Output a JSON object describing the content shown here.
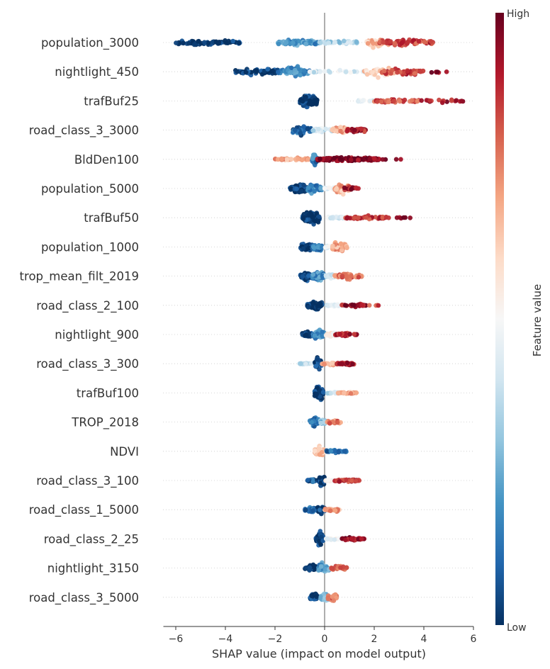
{
  "chart_data": {
    "type": "scatter",
    "subtype": "shap-beeswarm-summary",
    "xlabel": "SHAP value (impact on model output)",
    "xlim": [
      -6.5,
      6
    ],
    "xticks": [
      -6,
      -4,
      -2,
      0,
      2,
      4,
      6
    ],
    "xtick_labels": [
      "−6",
      "−4",
      "−2",
      "0",
      "2",
      "4",
      "6"
    ],
    "grid": false,
    "zero_line": true,
    "colorbar": {
      "title": "Feature value",
      "high_label": "High",
      "low_label": "Low",
      "colormap": "RdBu_r",
      "stops": [
        "#053061",
        "#2166ac",
        "#4393c3",
        "#92c5de",
        "#d1e5f0",
        "#f7f7f7",
        "#fddbc7",
        "#f4a582",
        "#d6604d",
        "#b2182b",
        "#67001f"
      ]
    },
    "features": [
      {
        "name": "population_3000",
        "clusters": [
          [
            -6.0,
            -3.4,
            0.02,
            70,
            6
          ],
          [
            -1.9,
            -0.2,
            0.2,
            70,
            7
          ],
          [
            -0.2,
            1.4,
            0.35,
            35,
            4
          ],
          [
            1.7,
            2.6,
            0.65,
            45,
            11
          ],
          [
            2.2,
            4.4,
            0.85,
            55,
            8
          ]
        ]
      },
      {
        "name": "nightlight_450",
        "clusters": [
          [
            -3.6,
            -1.8,
            0.03,
            60,
            7
          ],
          [
            -1.9,
            -0.6,
            0.18,
            60,
            11
          ],
          [
            -0.6,
            1.7,
            0.42,
            25,
            3
          ],
          [
            1.6,
            2.8,
            0.62,
            45,
            10
          ],
          [
            2.3,
            4.0,
            0.85,
            45,
            8
          ],
          [
            4.1,
            5.0,
            0.97,
            6,
            2
          ]
        ]
      },
      {
        "name": "trafBuf25",
        "clusters": [
          [
            -1.0,
            -0.3,
            0.01,
            120,
            14
          ],
          [
            1.2,
            2.0,
            0.45,
            10,
            2
          ],
          [
            2.0,
            3.8,
            0.82,
            40,
            4
          ],
          [
            3.8,
            5.6,
            0.9,
            18,
            3
          ]
        ]
      },
      {
        "name": "road_class_3_3000",
        "clusters": [
          [
            -1.3,
            -0.5,
            0.1,
            50,
            10
          ],
          [
            -0.5,
            0.3,
            0.4,
            30,
            4
          ],
          [
            0.3,
            1.0,
            0.68,
            45,
            6
          ],
          [
            0.9,
            1.7,
            0.9,
            30,
            5
          ]
        ]
      },
      {
        "name": "BldDen100",
        "clusters": [
          [
            -2.0,
            -0.5,
            0.7,
            40,
            3
          ],
          [
            -0.5,
            -0.3,
            0.15,
            30,
            16
          ],
          [
            -0.3,
            2.2,
            0.97,
            140,
            5
          ],
          [
            2.2,
            3.1,
            0.98,
            4,
            1
          ]
        ]
      },
      {
        "name": "population_5000",
        "clusters": [
          [
            -1.4,
            -0.6,
            0.02,
            70,
            9
          ],
          [
            -0.7,
            -0.1,
            0.17,
            50,
            10
          ],
          [
            0,
            0.5,
            0.45,
            20,
            3
          ],
          [
            0.4,
            1.0,
            0.68,
            35,
            11
          ],
          [
            0.8,
            1.4,
            0.9,
            20,
            6
          ]
        ]
      },
      {
        "name": "trafBuf50",
        "clusters": [
          [
            -0.9,
            -0.2,
            0.01,
            90,
            15
          ],
          [
            0,
            0.9,
            0.44,
            25,
            2
          ],
          [
            0.8,
            2.6,
            0.85,
            45,
            4
          ],
          [
            2.9,
            3.9,
            0.97,
            6,
            2
          ]
        ]
      },
      {
        "name": "population_1000",
        "clusters": [
          [
            -1.0,
            -0.4,
            0.02,
            50,
            9
          ],
          [
            -0.5,
            -0.1,
            0.16,
            35,
            9
          ],
          [
            0,
            0.4,
            0.45,
            15,
            4
          ],
          [
            0.3,
            0.9,
            0.7,
            35,
            12
          ]
        ]
      },
      {
        "name": "trop_mean_filt_2019",
        "clusters": [
          [
            -1.0,
            -0.4,
            0.03,
            60,
            8
          ],
          [
            -0.5,
            0.0,
            0.18,
            50,
            10
          ],
          [
            0,
            0.5,
            0.45,
            20,
            4
          ],
          [
            0.4,
            1.5,
            0.78,
            45,
            7
          ]
        ]
      },
      {
        "name": "road_class_2_100",
        "clusters": [
          [
            -0.7,
            -0.1,
            0.01,
            60,
            13
          ],
          [
            0,
            0.8,
            0.45,
            25,
            2
          ],
          [
            0.7,
            1.8,
            0.92,
            35,
            3
          ],
          [
            1.8,
            2.2,
            0.85,
            4,
            1
          ]
        ]
      },
      {
        "name": "nightlight_900",
        "clusters": [
          [
            -0.9,
            -0.4,
            0.02,
            40,
            6
          ],
          [
            -0.5,
            0.0,
            0.18,
            40,
            10
          ],
          [
            0,
            0.5,
            0.5,
            20,
            6
          ],
          [
            0.4,
            1.3,
            0.9,
            30,
            4
          ]
        ]
      },
      {
        "name": "road_class_3_300",
        "clusters": [
          [
            -1.0,
            -0.3,
            0.38,
            25,
            2
          ],
          [
            -0.4,
            -0.1,
            0.05,
            25,
            13
          ],
          [
            -0.1,
            0.6,
            0.65,
            30,
            3
          ],
          [
            0.5,
            1.2,
            0.9,
            35,
            3
          ]
        ]
      },
      {
        "name": "trafBuf100",
        "clusters": [
          [
            -0.4,
            -0.05,
            0.01,
            70,
            15
          ],
          [
            0.1,
            0.6,
            0.4,
            15,
            2
          ],
          [
            0.5,
            1.3,
            0.7,
            25,
            2
          ]
        ]
      },
      {
        "name": "TROP_2018",
        "clusters": [
          [
            -0.6,
            -0.2,
            0.12,
            45,
            10
          ],
          [
            -0.2,
            0.1,
            0.3,
            20,
            6
          ],
          [
            0.1,
            0.7,
            0.75,
            25,
            5
          ]
        ]
      },
      {
        "name": "NDVI",
        "clusters": [
          [
            -0.4,
            0.0,
            0.62,
            45,
            13
          ],
          [
            0.0,
            0.9,
            0.12,
            40,
            3
          ]
        ]
      },
      {
        "name": "road_class_3_100",
        "clusters": [
          [
            -0.7,
            -0.2,
            0.08,
            35,
            3
          ],
          [
            -0.2,
            0.0,
            0.02,
            30,
            15
          ],
          [
            0,
            0.4,
            0.5,
            15,
            2
          ],
          [
            0.4,
            1.4,
            0.88,
            40,
            3
          ]
        ]
      },
      {
        "name": "road_class_1_5000",
        "clusters": [
          [
            -0.8,
            -0.2,
            0.1,
            35,
            5
          ],
          [
            -0.3,
            0.0,
            0.05,
            25,
            12
          ],
          [
            0.0,
            0.6,
            0.7,
            25,
            5
          ]
        ]
      },
      {
        "name": "road_class_2_25",
        "clusters": [
          [
            -0.35,
            -0.05,
            0.01,
            60,
            13
          ],
          [
            0.05,
            0.7,
            0.48,
            20,
            2
          ],
          [
            0.6,
            1.6,
            0.95,
            35,
            3
          ]
        ]
      },
      {
        "name": "nightlight_3150",
        "clusters": [
          [
            -0.8,
            -0.3,
            0.02,
            40,
            7
          ],
          [
            -0.3,
            0.2,
            0.2,
            40,
            12
          ],
          [
            0.2,
            0.9,
            0.8,
            25,
            6
          ]
        ]
      },
      {
        "name": "road_class_3_5000",
        "clusters": [
          [
            -0.6,
            -0.2,
            0.05,
            40,
            7
          ],
          [
            -0.2,
            0.2,
            0.25,
            35,
            10
          ],
          [
            0.1,
            0.5,
            0.78,
            25,
            14
          ]
        ]
      }
    ]
  }
}
